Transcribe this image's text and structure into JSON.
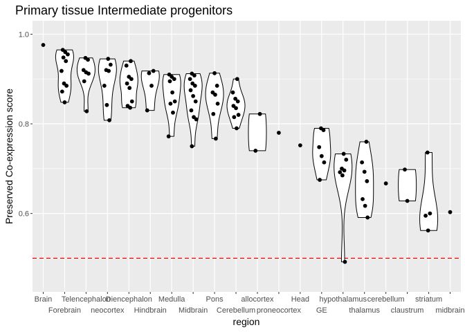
{
  "chart_data": {
    "type": "violin",
    "title": "Primary tissue Intermediate progenitors",
    "xlabel": "region",
    "ylabel": "Preserved Co-expression score",
    "ylim": [
      0.425,
      1.03
    ],
    "yticks": [
      0.6,
      0.8,
      1.0
    ],
    "ytick_labels": [
      "0.6",
      "0.8",
      "1.0"
    ],
    "reference_line": {
      "y": 0.5,
      "color": "#ff0000",
      "style": "dashed"
    },
    "panel_background": "#ebebeb",
    "grid": true,
    "colors": {
      "points": "#000000",
      "violin_outline": "#000000",
      "violin_fill": "#ffffff"
    },
    "categories": [
      {
        "label": "Brain",
        "values": [
          0.976
        ]
      },
      {
        "label": "Forebrain",
        "values": [
          0.965,
          0.96,
          0.955,
          0.948,
          0.94,
          0.918,
          0.89,
          0.885,
          0.872,
          0.848
        ]
      },
      {
        "label": "Telencephalon",
        "values": [
          0.947,
          0.943,
          0.92,
          0.915,
          0.912,
          0.895,
          0.828
        ]
      },
      {
        "label": "neocortex",
        "values": [
          0.945,
          0.932,
          0.92,
          0.918,
          0.885,
          0.842,
          0.808
        ]
      },
      {
        "label": "Diencephalon",
        "values": [
          0.94,
          0.93,
          0.905,
          0.9,
          0.89,
          0.88,
          0.85,
          0.84,
          0.836
        ]
      },
      {
        "label": "Hindbrain",
        "values": [
          0.918,
          0.913,
          0.885,
          0.83
        ]
      },
      {
        "label": "Medulla",
        "values": [
          0.91,
          0.905,
          0.9,
          0.895,
          0.87,
          0.85,
          0.845,
          0.825,
          0.772
        ]
      },
      {
        "label": "Midbrain",
        "values": [
          0.912,
          0.908,
          0.9,
          0.89,
          0.885,
          0.875,
          0.862,
          0.85,
          0.83,
          0.815,
          0.81,
          0.75
        ]
      },
      {
        "label": "Pons",
        "values": [
          0.913,
          0.885,
          0.87,
          0.865,
          0.845,
          0.822,
          0.767
        ]
      },
      {
        "label": "Cerebellum",
        "values": [
          0.9,
          0.87,
          0.856,
          0.85,
          0.84,
          0.835,
          0.82,
          0.815,
          0.79
        ]
      },
      {
        "label": "allocortex",
        "values": [
          0.822,
          0.74
        ]
      },
      {
        "label": "proneocortex",
        "values": [
          0.78
        ]
      },
      {
        "label": "Head",
        "values": [
          0.752
        ]
      },
      {
        "label": "GE",
        "values": [
          0.79,
          0.786,
          0.748,
          0.728,
          0.714,
          0.675
        ]
      },
      {
        "label": "hypothalamus",
        "values": [
          0.733,
          0.72,
          0.7,
          0.696,
          0.692,
          0.685,
          0.492
        ]
      },
      {
        "label": "thalamus",
        "values": [
          0.76,
          0.714,
          0.693,
          0.672,
          0.632,
          0.617,
          0.591
        ]
      },
      {
        "label": "cerebellum",
        "values": [
          0.667
        ]
      },
      {
        "label": "claustrum",
        "values": [
          0.698,
          0.628
        ]
      },
      {
        "label": "striatum",
        "values": [
          0.736,
          0.6,
          0.595,
          0.562
        ]
      },
      {
        "label": "midbrain",
        "values": [
          0.603
        ]
      }
    ]
  }
}
